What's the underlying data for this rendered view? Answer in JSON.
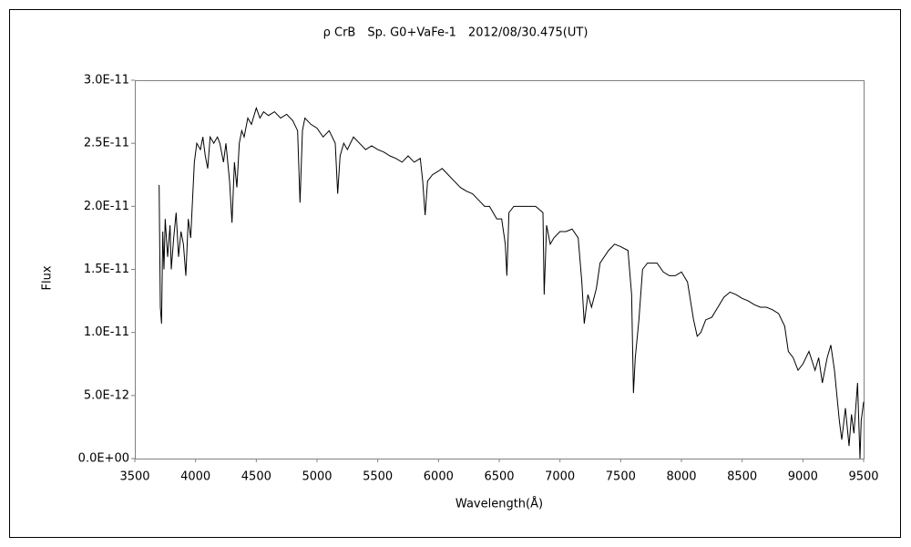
{
  "chart_data": {
    "type": "line",
    "title": "ρ CrB　Sp. G0+VaFe-1　2012/08/30.475(UT)",
    "x_label": "Wavelength(Å)",
    "y_label": "Flux",
    "xlim": [
      3500,
      9500
    ],
    "xticks": [
      3500,
      4000,
      4500,
      5000,
      5500,
      6000,
      6500,
      7000,
      7500,
      8000,
      8500,
      9000,
      9500
    ],
    "ylim": [
      0,
      3e-11
    ],
    "yticks": [
      {
        "value": 0,
        "label": "0.0E+00"
      },
      {
        "value": 5e-12,
        "label": "5.0E-12"
      },
      {
        "value": 1e-11,
        "label": "1.0E-11"
      },
      {
        "value": 1.5e-11,
        "label": "1.5E-11"
      },
      {
        "value": 2e-11,
        "label": "2.0E-11"
      },
      {
        "value": 2.5e-11,
        "label": "2.5E-11"
      },
      {
        "value": 3e-11,
        "label": "3.0E-11"
      }
    ],
    "grid": false,
    "series": [
      {
        "color": "#000000",
        "x": [
          3700,
          3710,
          3720,
          3730,
          3740,
          3750,
          3770,
          3790,
          3800,
          3820,
          3840,
          3860,
          3880,
          3900,
          3920,
          3940,
          3960,
          3970,
          3990,
          4010,
          4040,
          4060,
          4080,
          4100,
          4120,
          4150,
          4180,
          4200,
          4230,
          4250,
          4280,
          4300,
          4320,
          4340,
          4360,
          4380,
          4400,
          4430,
          4460,
          4500,
          4530,
          4560,
          4600,
          4650,
          4700,
          4750,
          4800,
          4840,
          4860,
          4880,
          4900,
          4950,
          5000,
          5050,
          5100,
          5150,
          5170,
          5190,
          5220,
          5250,
          5300,
          5350,
          5400,
          5450,
          5500,
          5550,
          5600,
          5650,
          5700,
          5750,
          5800,
          5850,
          5870,
          5890,
          5910,
          5950,
          6000,
          6030,
          6080,
          6130,
          6180,
          6230,
          6280,
          6330,
          6380,
          6420,
          6450,
          6480,
          6520,
          6550,
          6563,
          6580,
          6620,
          6700,
          6800,
          6860,
          6870,
          6890,
          6920,
          6950,
          7000,
          7050,
          7100,
          7150,
          7180,
          7200,
          7230,
          7260,
          7300,
          7330,
          7400,
          7450,
          7500,
          7560,
          7590,
          7605,
          7620,
          7650,
          7680,
          7720,
          7800,
          7850,
          7900,
          7950,
          8000,
          8050,
          8100,
          8130,
          8160,
          8200,
          8250,
          8300,
          8350,
          8400,
          8450,
          8500,
          8550,
          8600,
          8650,
          8700,
          8750,
          8800,
          8850,
          8880,
          8920,
          8960,
          9000,
          9050,
          9100,
          9130,
          9160,
          9200,
          9230,
          9260,
          9300,
          9320,
          9350,
          9380,
          9400,
          9420,
          9450,
          9470,
          9480,
          9500
        ],
        "values": [
          2.17e-11,
          1.2e-11,
          1.07e-11,
          1.8e-11,
          1.5e-11,
          1.9e-11,
          1.6e-11,
          1.85e-11,
          1.5e-11,
          1.75e-11,
          1.95e-11,
          1.6e-11,
          1.8e-11,
          1.7e-11,
          1.45e-11,
          1.9e-11,
          1.75e-11,
          1.95e-11,
          2.35e-11,
          2.5e-11,
          2.45e-11,
          2.55e-11,
          2.4e-11,
          2.3e-11,
          2.55e-11,
          2.5e-11,
          2.55e-11,
          2.5e-11,
          2.35e-11,
          2.5e-11,
          2.2e-11,
          1.87e-11,
          2.35e-11,
          2.15e-11,
          2.5e-11,
          2.6e-11,
          2.55e-11,
          2.7e-11,
          2.65e-11,
          2.78e-11,
          2.7e-11,
          2.75e-11,
          2.72e-11,
          2.75e-11,
          2.7e-11,
          2.73e-11,
          2.68e-11,
          2.6e-11,
          2.03e-11,
          2.6e-11,
          2.7e-11,
          2.65e-11,
          2.62e-11,
          2.55e-11,
          2.6e-11,
          2.5e-11,
          2.1e-11,
          2.4e-11,
          2.5e-11,
          2.45e-11,
          2.55e-11,
          2.5e-11,
          2.45e-11,
          2.48e-11,
          2.45e-11,
          2.43e-11,
          2.4e-11,
          2.38e-11,
          2.35e-11,
          2.4e-11,
          2.35e-11,
          2.38e-11,
          2.2e-11,
          1.93e-11,
          2.2e-11,
          2.25e-11,
          2.28e-11,
          2.3e-11,
          2.25e-11,
          2.2e-11,
          2.15e-11,
          2.12e-11,
          2.1e-11,
          2.05e-11,
          2e-11,
          2e-11,
          1.95e-11,
          1.9e-11,
          1.9e-11,
          1.7e-11,
          1.45e-11,
          1.95e-11,
          2e-11,
          2e-11,
          2e-11,
          1.95e-11,
          1.3e-11,
          1.85e-11,
          1.7e-11,
          1.75e-11,
          1.8e-11,
          1.8e-11,
          1.82e-11,
          1.75e-11,
          1.4e-11,
          1.07e-11,
          1.3e-11,
          1.2e-11,
          1.35e-11,
          1.55e-11,
          1.65e-11,
          1.7e-11,
          1.68e-11,
          1.65e-11,
          1.3e-11,
          5.2e-12,
          8e-12,
          1.1e-11,
          1.5e-11,
          1.55e-11,
          1.55e-11,
          1.48e-11,
          1.45e-11,
          1.45e-11,
          1.48e-11,
          1.4e-11,
          1.1e-11,
          9.7e-12,
          1e-11,
          1.1e-11,
          1.12e-11,
          1.2e-11,
          1.28e-11,
          1.32e-11,
          1.3e-11,
          1.27e-11,
          1.25e-11,
          1.22e-11,
          1.2e-11,
          1.2e-11,
          1.18e-11,
          1.15e-11,
          1.05e-11,
          8.5e-12,
          8e-12,
          7e-12,
          7.5e-12,
          8.5e-12,
          7e-12,
          8e-12,
          6e-12,
          8e-12,
          9e-12,
          7e-12,
          3e-12,
          1.5e-12,
          4e-12,
          1e-12,
          3.5e-12,
          2e-12,
          6e-12,
          0,
          3e-12,
          4.5e-12
        ]
      }
    ]
  }
}
